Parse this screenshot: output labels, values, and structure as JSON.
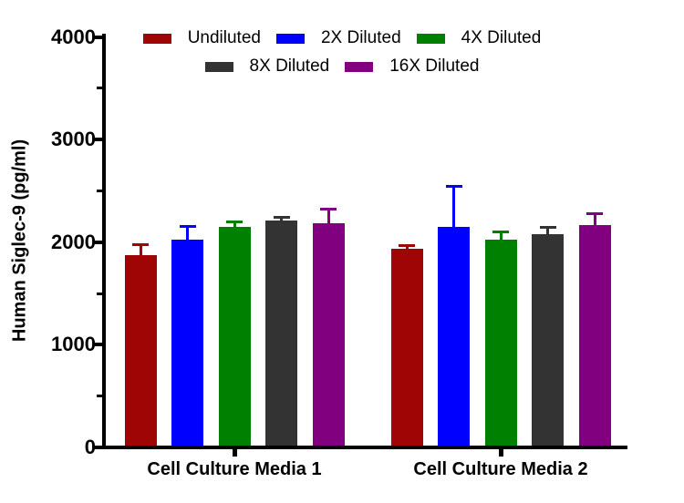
{
  "chart_data": {
    "type": "bar",
    "title": "",
    "ylabel": "Human Siglec-9 (pg/ml)",
    "xlabel": "",
    "categories": [
      "Cell Culture Media 1",
      "Cell Culture Media 2"
    ],
    "series": [
      {
        "name": "Undiluted",
        "color": "#A00505",
        "values": [
          1870,
          1935
        ],
        "errors": [
          115,
          45
        ]
      },
      {
        "name": "2X Diluted",
        "color": "#0000FF",
        "values": [
          2025,
          2145
        ],
        "errors": [
          145,
          410
        ]
      },
      {
        "name": "4X Diluted",
        "color": "#008000",
        "values": [
          2145,
          2025
        ],
        "errors": [
          70,
          90
        ]
      },
      {
        "name": "8X Diluted",
        "color": "#333333",
        "values": [
          2210,
          2080
        ],
        "errors": [
          45,
          75
        ]
      },
      {
        "name": "16X Diluted",
        "color": "#800080",
        "values": [
          2180,
          2170
        ],
        "errors": [
          155,
          120
        ]
      }
    ],
    "ylim": [
      0,
      4000
    ],
    "y_major_ticks": [
      0,
      1000,
      2000,
      3000,
      4000
    ],
    "y_minor_ticks": [
      500,
      1500,
      2500,
      3500
    ],
    "error_bars": "upper only, colored per series",
    "legend_position": "top, two rows (3 + 2 items)",
    "grid": false,
    "background_color": "#FFFFFF",
    "axis_color": "#000000"
  }
}
